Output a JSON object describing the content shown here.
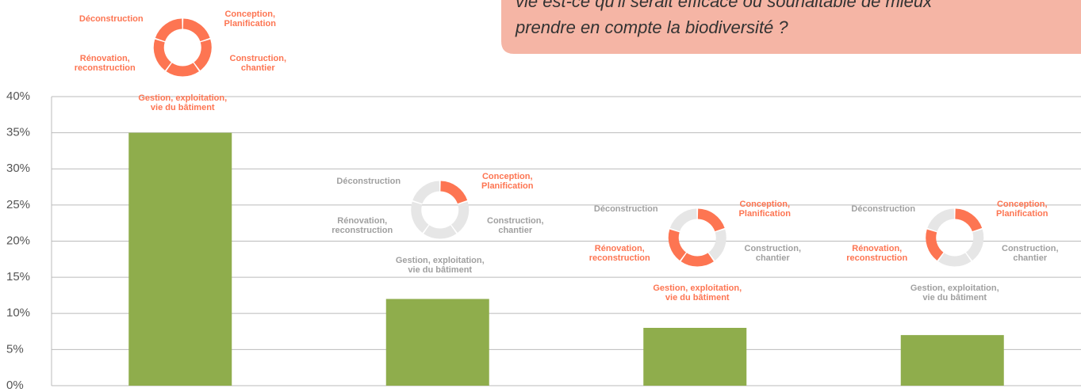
{
  "question": [
    "vie est-ce qu'il serait efficace ou souhaitable de mieux",
    "prendre en compte la biodiversité ?"
  ],
  "phases": [
    {
      "lines": [
        "Conception,",
        "Planification"
      ]
    },
    {
      "lines": [
        "Construction,",
        "chantier"
      ]
    },
    {
      "lines": [
        "Gestion, exploitation,",
        "vie du bâtiment"
      ]
    },
    {
      "lines": [
        "Rénovation,",
        "reconstruction"
      ]
    },
    {
      "lines": [
        "Déconstruction"
      ]
    }
  ],
  "highlight_color": "#fd7552",
  "muted_color": "#e6e6e6",
  "muted_text_color": "#a0a0a0",
  "donuts": [
    [
      true,
      true,
      true,
      true,
      true
    ],
    [
      true,
      false,
      false,
      false,
      false
    ],
    [
      true,
      false,
      true,
      true,
      false
    ],
    [
      true,
      false,
      false,
      true,
      false
    ]
  ],
  "chart_data": {
    "type": "bar",
    "categories": [
      null,
      null,
      null,
      null
    ],
    "values": [
      35,
      12,
      8,
      7
    ],
    "color": "#8fad4c",
    "ylim": [
      0,
      40
    ],
    "yticks": [
      {
        "value": 0,
        "label": "0%"
      },
      {
        "value": 5,
        "label": "5%"
      },
      {
        "value": 10,
        "label": "10%"
      },
      {
        "value": 15,
        "label": "15%"
      },
      {
        "value": 20,
        "label": "20%"
      },
      {
        "value": 25,
        "label": "25%"
      },
      {
        "value": 30,
        "label": "30%"
      },
      {
        "value": 35,
        "label": "35%"
      },
      {
        "value": 40,
        "label": "40%"
      }
    ],
    "grid": true
  }
}
